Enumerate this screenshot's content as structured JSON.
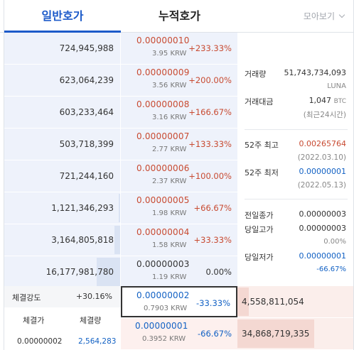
{
  "tabs": {
    "general": "일반호가",
    "cumulative": "누적호가",
    "view_select": "모아보기"
  },
  "asks": [
    {
      "qty": "724,945,988",
      "price": "0.00000010",
      "krw": "3.95 KRW",
      "pct": "+233.33%",
      "bar": 0
    },
    {
      "qty": "623,064,239",
      "price": "0.00000009",
      "krw": "3.56 KRW",
      "pct": "+200.00%",
      "bar": 0
    },
    {
      "qty": "603,233,464",
      "price": "0.00000008",
      "krw": "3.16 KRW",
      "pct": "+166.67%",
      "bar": 0
    },
    {
      "qty": "503,718,399",
      "price": "0.00000007",
      "krw": "2.77 KRW",
      "pct": "+133.33%",
      "bar": 0
    },
    {
      "qty": "721,244,160",
      "price": "0.00000006",
      "krw": "2.37 KRW",
      "pct": "+100.00%",
      "bar": 0
    },
    {
      "qty": "1,121,346,293",
      "price": "0.00000005",
      "krw": "1.98 KRW",
      "pct": "+66.67%",
      "bar": 0.01
    },
    {
      "qty": "3,164,805,818",
      "price": "0.00000004",
      "krw": "1.58 KRW",
      "pct": "+33.33%",
      "bar": 0.05
    },
    {
      "qty": "16,177,981,780",
      "price": "0.00000003",
      "krw": "1.19 KRW",
      "pct": "0.00%",
      "bar": 0.2,
      "neutral": true
    }
  ],
  "bids": [
    {
      "qty": "4,558,811,054",
      "price": "0.00000002",
      "krw": "0.7903 KRW",
      "pct": "-33.33%",
      "bar": 0.1
    },
    {
      "qty": "34,868,719,335",
      "price": "0.00000001",
      "krw": "0.3952 KRW",
      "pct": "-66.67%",
      "bar": 0.66
    }
  ],
  "trade": {
    "strength_label": "체결강도",
    "strength_value": "+30.16%",
    "price_header": "체결가",
    "qty_header": "체결량",
    "last_price": "0.00000002",
    "last_qty": "2,564,283"
  },
  "info": {
    "volume_label": "거래량",
    "volume_value": "51,743,734,093",
    "volume_unit": "LUNA",
    "amount_label": "거래대금",
    "amount_value": "1,047",
    "amount_unit": "BTC",
    "amount_note": "(최근24시간)",
    "high52_label": "52주 최고",
    "high52_value": "0.00265764",
    "high52_date": "(2022.03.10)",
    "low52_label": "52주 최저",
    "low52_value": "0.00000001",
    "low52_date": "(2022.05.13)",
    "prev_close_label": "전일종가",
    "prev_close_value": "0.00000003",
    "day_high_label": "당일고가",
    "day_high_value": "0.00000003",
    "day_high_pct": "0.00%",
    "day_low_label": "당일저가",
    "day_low_value": "0.00000001",
    "day_low_pct": "-66.67%"
  },
  "colors": {
    "accent": "#1c5ac9",
    "up": "#c84a31",
    "down": "#1261c4",
    "ask_bg": "#eef2fb",
    "bid_bg": "#fdf0ee"
  }
}
